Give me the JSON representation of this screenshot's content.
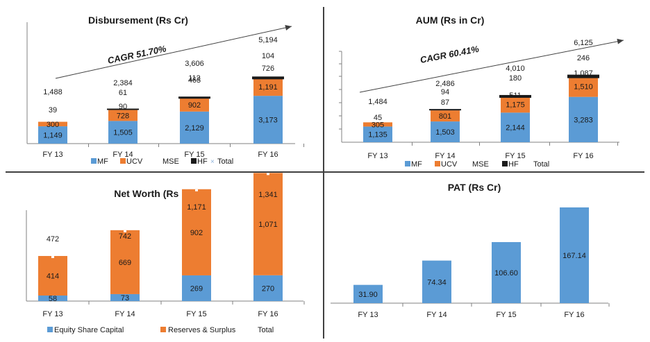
{
  "colors": {
    "MF": "#5B9BD5",
    "UCV": "#ED7D31",
    "MSE": "#7F7F7F",
    "HF": "#1A1A1A",
    "Total": "#8FB4DC",
    "text": "#1a1a1a",
    "axis": "#808080",
    "cagr_arrow": "#404040"
  },
  "chart_data": [
    {
      "type": "bar",
      "stacked": true,
      "title": "Disbursement (Rs Cr)",
      "categories": [
        "FY 13",
        "FY 14",
        "FY 15",
        "FY 16"
      ],
      "series": [
        {
          "name": "MF",
          "values": [
            1149,
            1505,
            2129,
            3173
          ],
          "labels": [
            "1,149",
            "1,505",
            "2,129",
            "3,173"
          ]
        },
        {
          "name": "UCV",
          "values": [
            300,
            728,
            902,
            1191
          ],
          "labels": [
            "300",
            "728",
            "902",
            "1,191"
          ]
        },
        {
          "name": "MSE",
          "values": [
            39,
            61,
            112,
            104
          ],
          "labels": [
            "39",
            "61",
            "112",
            "104"
          ]
        },
        {
          "name": "HF",
          "values": [
            0,
            90,
            463,
            726
          ],
          "labels": [
            "",
            "90",
            "463",
            "726"
          ]
        },
        {
          "name": "Total",
          "values": [
            1488,
            2384,
            3606,
            5194
          ],
          "labels": [
            "1,488",
            "2,384",
            "3,606",
            "5,194"
          ]
        }
      ],
      "annotation": "CAGR 51.70%",
      "legend": [
        "MF",
        "UCV",
        "MSE",
        "HF",
        "Total"
      ],
      "ylim": [
        0,
        5300
      ]
    },
    {
      "type": "bar",
      "stacked": true,
      "title": "AUM (Rs in Cr)",
      "categories": [
        "FY 13",
        "FY 14",
        "FY 15",
        "FY 16"
      ],
      "series": [
        {
          "name": "MF",
          "values": [
            1135,
            1503,
            2144,
            3283
          ],
          "labels": [
            "1,135",
            "1,503",
            "2,144",
            "3,283"
          ]
        },
        {
          "name": "UCV",
          "values": [
            305,
            801,
            1175,
            1510
          ],
          "labels": [
            "305",
            "801",
            "1,175",
            "1,510"
          ]
        },
        {
          "name": "MSE",
          "values": [
            45,
            87,
            511,
            1087
          ],
          "labels": [
            "45",
            "87",
            "511",
            "1,087"
          ]
        },
        {
          "name": "HF",
          "values": [
            0,
            94,
            180,
            246
          ],
          "labels": [
            "",
            "94",
            "180",
            "246"
          ]
        },
        {
          "name": "Total",
          "values": [
            1484,
            2486,
            4010,
            6125
          ],
          "labels": [
            "1,484",
            "2,486",
            "4,010",
            "6,125"
          ]
        }
      ],
      "annotation": "CAGR 60.41%",
      "legend": [
        "MF",
        "UCV",
        "MSE",
        "HF",
        "Total"
      ],
      "ylim": [
        0,
        6200
      ]
    },
    {
      "type": "bar",
      "stacked": true,
      "title": "Net Worth (Rs in Cr)",
      "categories": [
        "FY 13",
        "FY 14",
        "FY 15",
        "FY 16"
      ],
      "series": [
        {
          "name": "Equity Share Capital",
          "values": [
            58,
            73,
            269,
            270
          ],
          "labels": [
            "58",
            "73",
            "269",
            "270"
          ]
        },
        {
          "name": "Reserves & Surplus",
          "values": [
            414,
            669,
            902,
            1071
          ],
          "labels": [
            "414",
            "669",
            "902",
            "1,071"
          ]
        },
        {
          "name": "Total",
          "values": [
            472,
            742,
            1171,
            1341
          ],
          "labels": [
            "472",
            "742",
            "1,171",
            "1,341"
          ]
        }
      ],
      "legend": [
        "Equity Share Capital",
        "Reserves & Surplus",
        "Total"
      ],
      "ylim": [
        0,
        1341
      ]
    },
    {
      "type": "bar",
      "title": "PAT (Rs Cr)",
      "categories": [
        "FY 13",
        "FY 14",
        "FY 15",
        "FY 16"
      ],
      "values": [
        31.9,
        74.34,
        106.6,
        167.14
      ],
      "labels": [
        "31.90",
        "74.34",
        "106.60",
        "167.14"
      ],
      "ylim": [
        0,
        167.14
      ]
    }
  ]
}
